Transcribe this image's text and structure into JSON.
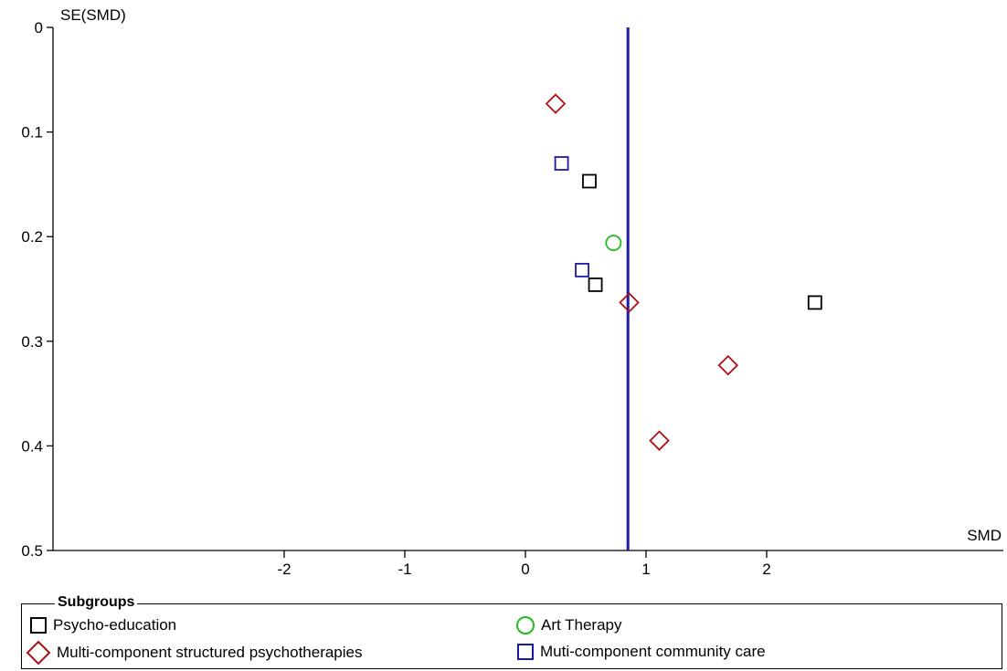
{
  "chart_data": {
    "type": "scatter",
    "plot_kind": "funnel plot",
    "xlabel": "SMD",
    "ylabel": "SE(SMD)",
    "xlim": [
      -4.4,
      4
    ],
    "ylim": [
      0,
      0.5
    ],
    "y_inverted": true,
    "x_ticks": [
      "-2",
      "-1",
      "0",
      "1",
      "2"
    ],
    "x_tick_values": [
      -2,
      -1,
      0,
      1,
      2
    ],
    "y_ticks": [
      "0",
      "0.1",
      "0.2",
      "0.3",
      "0.4",
      "0.5"
    ],
    "y_tick_values": [
      0,
      0.1,
      0.2,
      0.3,
      0.4,
      0.5
    ],
    "reference_line": {
      "x": 0.85,
      "color": "#1a1aa8"
    },
    "series": [
      {
        "name": "Psycho-education",
        "marker": "square",
        "color": "#000000",
        "points": [
          [
            0.53,
            0.147
          ],
          [
            0.58,
            0.246
          ],
          [
            2.4,
            0.263
          ]
        ]
      },
      {
        "name": "Art Therapy",
        "marker": "circle",
        "color": "#22bb22",
        "points": [
          [
            0.73,
            0.206
          ]
        ]
      },
      {
        "name": "Multi-component structured psychotherapies",
        "marker": "diamond",
        "color": "#b01010",
        "points": [
          [
            0.25,
            0.073
          ],
          [
            0.86,
            0.263
          ],
          [
            1.68,
            0.323
          ],
          [
            1.11,
            0.395
          ]
        ]
      },
      {
        "name": "Muti-component community care",
        "marker": "square",
        "color": "#1a1aa8",
        "points": [
          [
            0.3,
            0.13
          ],
          [
            0.47,
            0.232
          ]
        ]
      }
    ]
  },
  "legend": {
    "title": "Subgroups",
    "items": [
      {
        "label": "Psycho-education",
        "marker": "square",
        "color": "#000000"
      },
      {
        "label": "Art Therapy",
        "marker": "circle",
        "color": "#22bb22"
      },
      {
        "label": "Multi-component structured psychotherapies",
        "marker": "diamond",
        "color": "#b01010"
      },
      {
        "label": "Muti-component community care",
        "marker": "square",
        "color": "#1a1aa8"
      }
    ]
  }
}
